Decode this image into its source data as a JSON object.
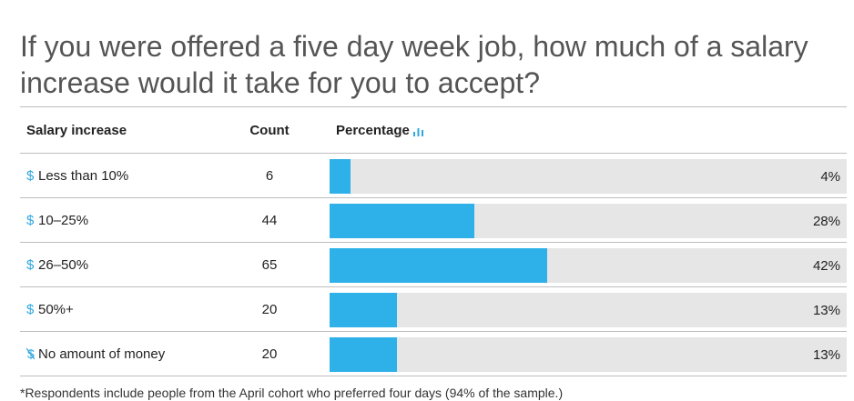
{
  "title": "If you were offered a five day week job, how much of a salary increase would it take for you to accept?",
  "headers": {
    "category": "Salary increase",
    "count": "Count",
    "percentage": "Percentage"
  },
  "rows": [
    {
      "icon": "dollar-icon",
      "label": "Less than 10%",
      "count": "6",
      "percentage": "4%"
    },
    {
      "icon": "dollar-icon",
      "label": "10–25%",
      "count": "44",
      "percentage": "28%"
    },
    {
      "icon": "dollar-icon",
      "label": "26–50%",
      "count": "65",
      "percentage": "42%"
    },
    {
      "icon": "dollar-icon",
      "label": "50%+",
      "count": "20",
      "percentage": "13%"
    },
    {
      "icon": "no-dollar-icon",
      "label": "No amount of money",
      "count": "20",
      "percentage": "13%"
    }
  ],
  "footnote": "*Respondents include people from the April cohort who preferred four days (94% of the sample.)",
  "colors": {
    "bar": "#2eb0e8",
    "track": "#e6e6e6",
    "accent": "#2ea7e0"
  },
  "chart_data": {
    "type": "table",
    "title": "If you were offered a five day week job, how much of a salary increase would it take for you to accept?",
    "columns": [
      "Salary increase",
      "Count",
      "Percentage"
    ],
    "categories": [
      "Less than 10%",
      "10–25%",
      "26–50%",
      "50%+",
      "No amount of money"
    ],
    "series": [
      {
        "name": "Count",
        "values": [
          6,
          44,
          65,
          20,
          20
        ]
      },
      {
        "name": "Percentage",
        "values": [
          4,
          28,
          42,
          13,
          13
        ]
      }
    ],
    "xlim": [
      0,
      100
    ]
  }
}
